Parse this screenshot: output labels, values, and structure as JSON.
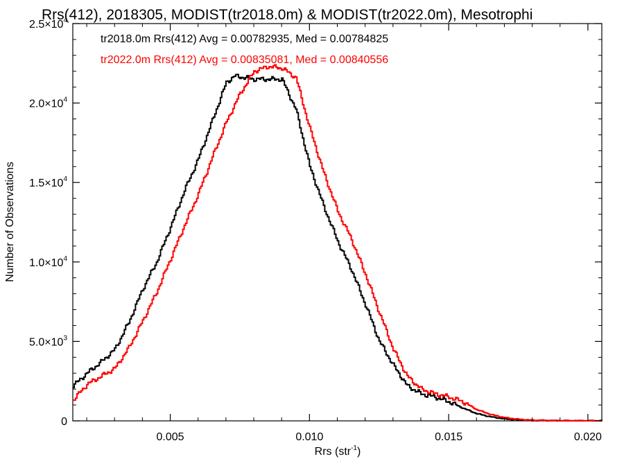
{
  "chart_data": {
    "type": "line",
    "title": "Rrs(412), 2018305, MODIST(tr2018.0m) & MODIST(tr2022.0m), Mesotrophi",
    "xlabel": "Rrs (str",
    "xlabel_sup": "-1",
    "xlabel_close": ")",
    "ylabel": "Number of Observations",
    "xlim": [
      0.0015,
      0.0205
    ],
    "ylim": [
      0,
      25000
    ],
    "grid": false,
    "legend_position": "top-left",
    "x_ticks": [
      {
        "value": 0.005,
        "label": "0.005"
      },
      {
        "value": 0.01,
        "label": "0.010"
      },
      {
        "value": 0.015,
        "label": "0.015"
      },
      {
        "value": 0.02,
        "label": "0.020"
      }
    ],
    "y_ticks": [
      {
        "value": 0,
        "mant": "0",
        "exp": ""
      },
      {
        "value": 5000,
        "mant": "5.0×10",
        "exp": "3"
      },
      {
        "value": 10000,
        "mant": "1.0×10",
        "exp": "4"
      },
      {
        "value": 15000,
        "mant": "1.5×10",
        "exp": "4"
      },
      {
        "value": 20000,
        "mant": "2.0×10",
        "exp": "4"
      },
      {
        "value": 25000,
        "mant": "2.5×10",
        "exp": "4"
      }
    ],
    "series": [
      {
        "name": "tr2018.0m Rrs(412) Avg = 0.00782935, Med = 0.00784825",
        "color": "#000000",
        "points": [
          [
            0.0015,
            2200
          ],
          [
            0.002,
            3000
          ],
          [
            0.0025,
            3700
          ],
          [
            0.003,
            4500
          ],
          [
            0.0035,
            6200
          ],
          [
            0.004,
            8300
          ],
          [
            0.0045,
            10000
          ],
          [
            0.005,
            12200
          ],
          [
            0.0055,
            14500
          ],
          [
            0.006,
            16500
          ],
          [
            0.0065,
            18900
          ],
          [
            0.007,
            21300
          ],
          [
            0.0073,
            21700
          ],
          [
            0.008,
            21500
          ],
          [
            0.0085,
            21500
          ],
          [
            0.009,
            21500
          ],
          [
            0.0095,
            19600
          ],
          [
            0.01,
            16000
          ],
          [
            0.0105,
            13500
          ],
          [
            0.011,
            11300
          ],
          [
            0.0115,
            9500
          ],
          [
            0.012,
            7300
          ],
          [
            0.0125,
            5000
          ],
          [
            0.013,
            3500
          ],
          [
            0.0135,
            2200
          ],
          [
            0.014,
            1700
          ],
          [
            0.0145,
            1500
          ],
          [
            0.015,
            1200
          ],
          [
            0.0155,
            800
          ],
          [
            0.016,
            450
          ],
          [
            0.0165,
            250
          ],
          [
            0.017,
            120
          ],
          [
            0.0175,
            60
          ],
          [
            0.018,
            25
          ],
          [
            0.019,
            5
          ],
          [
            0.0205,
            0
          ]
        ]
      },
      {
        "name": "tr2022.0m Rrs(412) Avg = 0.00835081, Med = 0.00840556",
        "color": "#ff0000",
        "points": [
          [
            0.0015,
            1300
          ],
          [
            0.002,
            2300
          ],
          [
            0.0025,
            2800
          ],
          [
            0.003,
            3300
          ],
          [
            0.0035,
            4600
          ],
          [
            0.004,
            6300
          ],
          [
            0.0045,
            8100
          ],
          [
            0.005,
            10200
          ],
          [
            0.0055,
            12300
          ],
          [
            0.006,
            14300
          ],
          [
            0.0065,
            16600
          ],
          [
            0.007,
            18800
          ],
          [
            0.0075,
            20600
          ],
          [
            0.008,
            22000
          ],
          [
            0.0085,
            22300
          ],
          [
            0.009,
            22200
          ],
          [
            0.0095,
            21600
          ],
          [
            0.01,
            18400
          ],
          [
            0.0105,
            15600
          ],
          [
            0.011,
            13200
          ],
          [
            0.0115,
            11400
          ],
          [
            0.012,
            9200
          ],
          [
            0.0125,
            6800
          ],
          [
            0.013,
            4500
          ],
          [
            0.0135,
            2800
          ],
          [
            0.014,
            2000
          ],
          [
            0.0145,
            1700
          ],
          [
            0.015,
            1500
          ],
          [
            0.0155,
            1200
          ],
          [
            0.016,
            700
          ],
          [
            0.0165,
            400
          ],
          [
            0.017,
            200
          ],
          [
            0.0175,
            100
          ],
          [
            0.018,
            40
          ],
          [
            0.019,
            8
          ],
          [
            0.0205,
            0
          ]
        ]
      }
    ]
  }
}
